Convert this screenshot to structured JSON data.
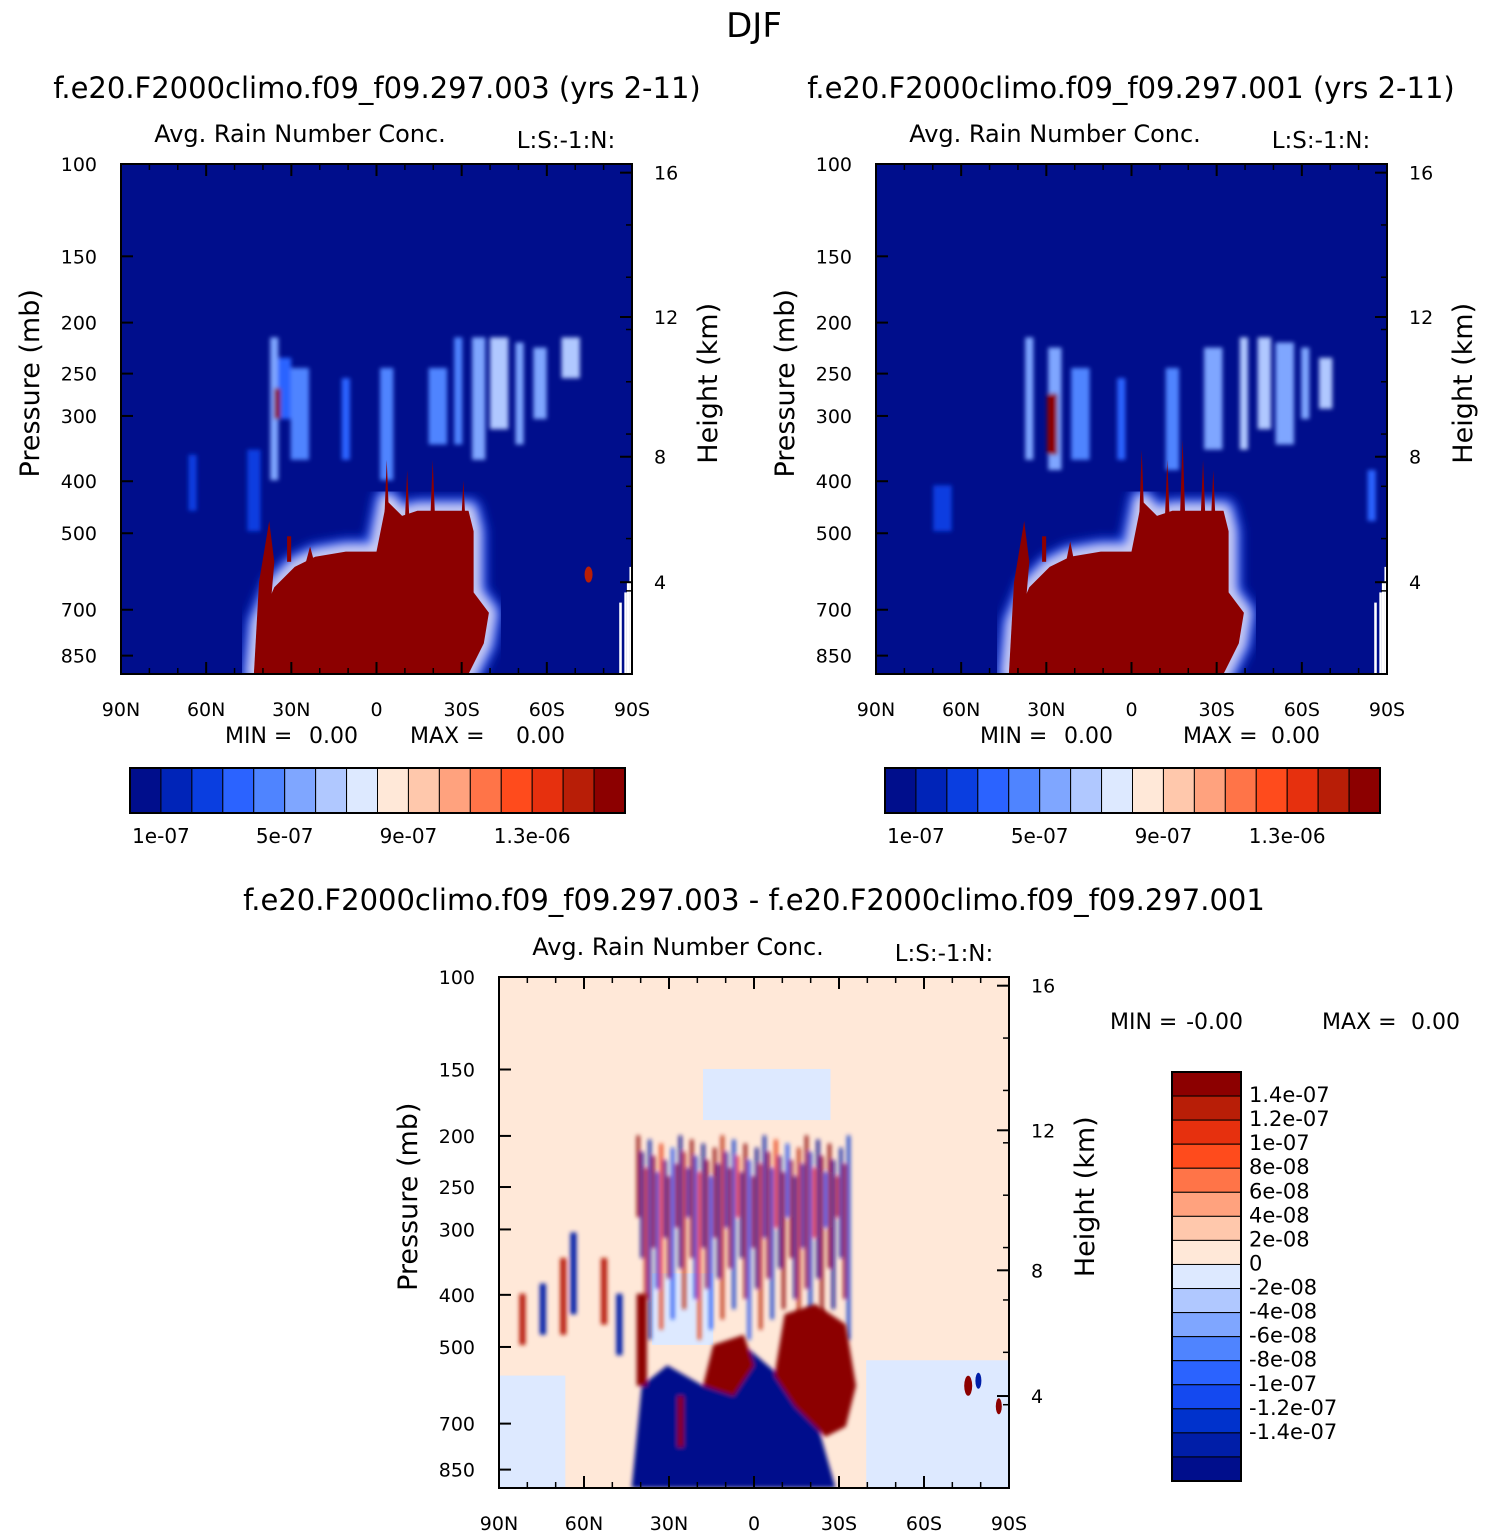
{
  "figure_title": "DJF",
  "colors": {
    "abs_levels": [
      "#000e8c",
      "#0024b8",
      "#0a3ee0",
      "#2b63ff",
      "#4f84ff",
      "#7fa6ff",
      "#b0c8ff",
      "#dde9ff",
      "#ffe8d8",
      "#ffc8ac",
      "#ffa27e",
      "#ff7448",
      "#ff4b1c",
      "#e6300e",
      "#b81e07",
      "#8c0000"
    ],
    "diff_levels": [
      "#000e8c",
      "#001ea8",
      "#0032cc",
      "#1449f0",
      "#2b63ff",
      "#4f84ff",
      "#7fa6ff",
      "#b0c8ff",
      "#dde9ff",
      "#ffe8d8",
      "#ffc8ac",
      "#ffa27e",
      "#ff7448",
      "#ff4b1c",
      "#e6300e",
      "#b81e07",
      "#8c0000"
    ]
  },
  "chart_data": [
    {
      "type": "heatmap",
      "case_title": "f.e20.F2000climo.f09_f09.297.003 (yrs 2-11)",
      "variable": "Avg. Rain Number Conc.",
      "tag": "L:S:-1:N:",
      "ylabel": "Pressure (mb)",
      "y2label": "Height (km)",
      "x_ticks": [
        "90N",
        "60N",
        "30N",
        "0",
        "30S",
        "60S",
        "90S"
      ],
      "y_ticks": [
        "100",
        "150",
        "200",
        "250",
        "300",
        "400",
        "500",
        "700",
        "850"
      ],
      "y2_ticks": [
        "16",
        "12",
        "8",
        "4"
      ],
      "stats": {
        "min_label": "MIN =",
        "min": "0.00",
        "max_label": "MAX =",
        "max": "0.00"
      },
      "colorbar_labels": [
        "1e-07",
        "5e-07",
        "9e-07",
        "1.3e-06"
      ]
    },
    {
      "type": "heatmap",
      "case_title": "f.e20.F2000climo.f09_f09.297.001 (yrs 2-11)",
      "variable": "Avg. Rain Number Conc.",
      "tag": "L:S:-1:N:",
      "ylabel": "Pressure (mb)",
      "y2label": "Height (km)",
      "x_ticks": [
        "90N",
        "60N",
        "30N",
        "0",
        "30S",
        "60S",
        "90S"
      ],
      "y_ticks": [
        "100",
        "150",
        "200",
        "250",
        "300",
        "400",
        "500",
        "700",
        "850"
      ],
      "y2_ticks": [
        "16",
        "12",
        "8",
        "4"
      ],
      "stats": {
        "min_label": "MIN =",
        "min": "0.00",
        "max_label": "MAX =",
        "max": "0.00"
      },
      "colorbar_labels": [
        "1e-07",
        "5e-07",
        "9e-07",
        "1.3e-06"
      ]
    },
    {
      "type": "heatmap",
      "case_title": "f.e20.F2000climo.f09_f09.297.003 - f.e20.F2000climo.f09_f09.297.001",
      "variable": "Avg. Rain Number Conc.",
      "tag": "L:S:-1:N:",
      "ylabel": "Pressure (mb)",
      "y2label": "Height (km)",
      "x_ticks": [
        "90N",
        "60N",
        "30N",
        "0",
        "30S",
        "60S",
        "90S"
      ],
      "y_ticks": [
        "100",
        "150",
        "200",
        "250",
        "300",
        "400",
        "500",
        "700",
        "850"
      ],
      "y2_ticks": [
        "16",
        "12",
        "8",
        "4"
      ],
      "stats": {
        "min_label": "MIN =",
        "min": "-0.00",
        "max_label": "MAX =",
        "max": "0.00"
      },
      "colorbar_labels": [
        "1.4e-07",
        "1.2e-07",
        "1e-07",
        "8e-08",
        "6e-08",
        "4e-08",
        "2e-08",
        "0",
        "-2e-08",
        "-4e-08",
        "-6e-08",
        "-8e-08",
        "-1e-07",
        "-1.2e-07",
        "-1.4e-07"
      ]
    }
  ]
}
